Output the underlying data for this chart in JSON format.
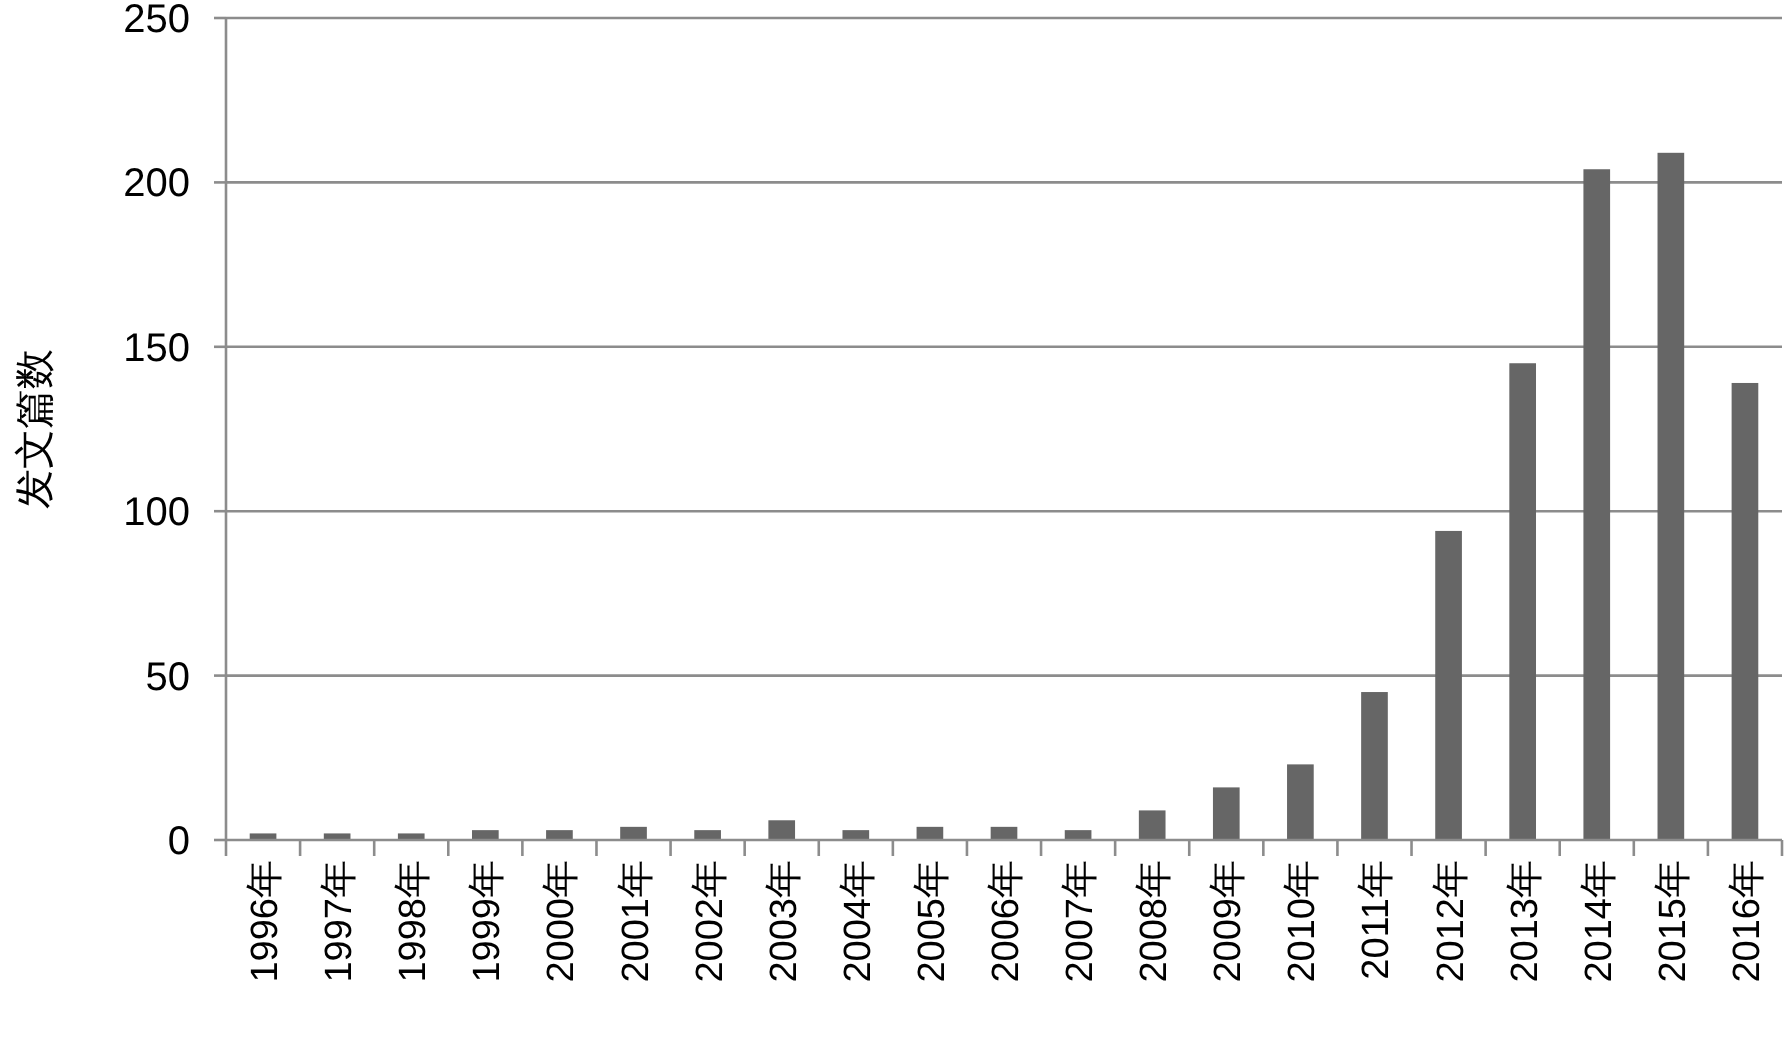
{
  "chart_data": {
    "type": "bar",
    "ylabel": "发文篇数",
    "categories": [
      "1996年",
      "1997年",
      "1998年",
      "1999年",
      "2000年",
      "2001年",
      "2002年",
      "2003年",
      "2004年",
      "2005年",
      "2006年",
      "2007年",
      "2008年",
      "2009年",
      "2010年",
      "2011年",
      "2012年",
      "2013年",
      "2014年",
      "2015年",
      "2016年"
    ],
    "values": [
      2,
      2,
      2,
      3,
      3,
      4,
      3,
      6,
      3,
      4,
      4,
      3,
      9,
      16,
      23,
      45,
      94,
      145,
      204,
      209,
      139
    ],
    "color": "#666666",
    "ylim": [
      0,
      250
    ],
    "yticks": [
      0,
      50,
      100,
      150,
      200,
      250
    ],
    "grid": "y"
  }
}
